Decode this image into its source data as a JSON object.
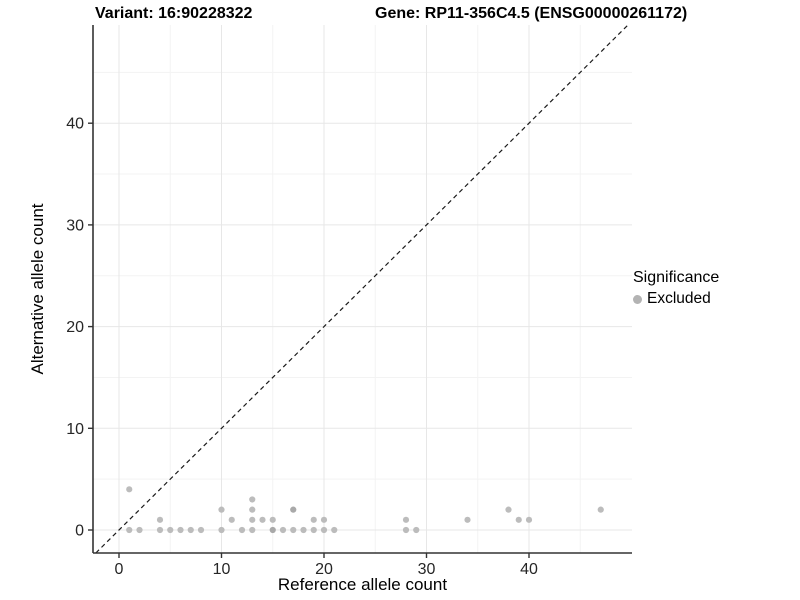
{
  "chart_data": {
    "type": "scatter",
    "titles": {
      "left": "Variant: 16:90228322",
      "right": "Gene: RP11-356C4.5 (ENSG00000261172)"
    },
    "xlabel": "Reference allele count",
    "ylabel": "Alternative allele count",
    "x_ticks": [
      0,
      10,
      20,
      30,
      40
    ],
    "y_ticks": [
      0,
      10,
      20,
      30,
      40
    ],
    "xlim": [
      -2.5,
      50
    ],
    "ylim": [
      -2.3,
      49.7
    ],
    "grid": "major-and-minor",
    "reference_line": {
      "type": "identity",
      "equation": "y = x",
      "style": "dashed",
      "color": "#1a1a1a"
    },
    "legend": {
      "title": "Significance",
      "position": "right",
      "entries": [
        {
          "label": "Excluded",
          "color": "#b3b3b3"
        }
      ]
    },
    "series": [
      {
        "name": "Excluded",
        "point_color": "#bcbcbc",
        "overplot_color": "#a9a9a9",
        "points": [
          [
            1,
            0
          ],
          [
            1,
            4
          ],
          [
            2,
            0
          ],
          [
            4,
            0
          ],
          [
            4,
            1
          ],
          [
            5,
            0
          ],
          [
            6,
            0
          ],
          [
            7,
            0
          ],
          [
            8,
            0
          ],
          [
            10,
            0
          ],
          [
            10,
            2
          ],
          [
            11,
            1
          ],
          [
            12,
            0
          ],
          [
            13,
            0
          ],
          [
            13,
            1
          ],
          [
            13,
            2
          ],
          [
            13,
            3
          ],
          [
            14,
            1
          ],
          [
            15,
            0
          ],
          [
            15,
            1
          ],
          [
            16,
            0
          ],
          [
            17,
            0
          ],
          [
            17,
            2
          ],
          [
            18,
            0
          ],
          [
            19,
            0
          ],
          [
            19,
            1
          ],
          [
            20,
            0
          ],
          [
            20,
            1
          ],
          [
            21,
            0
          ],
          [
            28,
            0
          ],
          [
            28,
            1
          ],
          [
            29,
            0
          ],
          [
            34,
            1
          ],
          [
            38,
            2
          ],
          [
            39,
            1
          ],
          [
            40,
            1
          ],
          [
            47,
            2
          ]
        ],
        "overplotted_points": [
          [
            15,
            0
          ],
          [
            17,
            2
          ]
        ]
      }
    ]
  }
}
